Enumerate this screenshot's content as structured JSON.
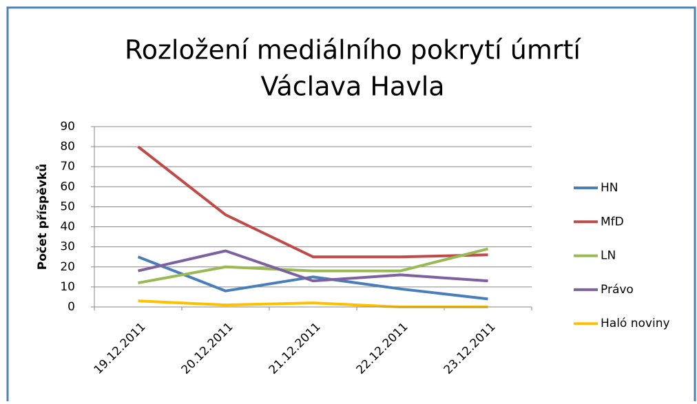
{
  "chart_data": {
    "type": "line",
    "title": [
      "Rozložení mediálního pokrytí úmrtí",
      "Václava Havla"
    ],
    "y_label": "Počet příspěvků",
    "categories": [
      "19.12.2011",
      "20.12.2011",
      "21.12.2011",
      "22.12.2011",
      "23.12.2011"
    ],
    "series": [
      {
        "name": "HN",
        "color": "#4a7ebb",
        "values": [
          25,
          8,
          15,
          9,
          4
        ]
      },
      {
        "name": "MfD",
        "color": "#be4b48",
        "values": [
          80,
          46,
          25,
          25,
          26
        ]
      },
      {
        "name": "LN",
        "color": "#98b954",
        "values": [
          12,
          20,
          18,
          18,
          29
        ]
      },
      {
        "name": "Právo",
        "color": "#7d60a0",
        "values": [
          18,
          28,
          13,
          16,
          13
        ]
      },
      {
        "name": "Haló noviny",
        "color": "#ffc000",
        "values": [
          3,
          1,
          2,
          0,
          0
        ]
      }
    ],
    "ylim": [
      0,
      90
    ],
    "yticks": [
      0,
      10,
      20,
      30,
      40,
      50,
      60,
      70,
      80,
      90
    ],
    "grid": true,
    "legend": "right"
  }
}
